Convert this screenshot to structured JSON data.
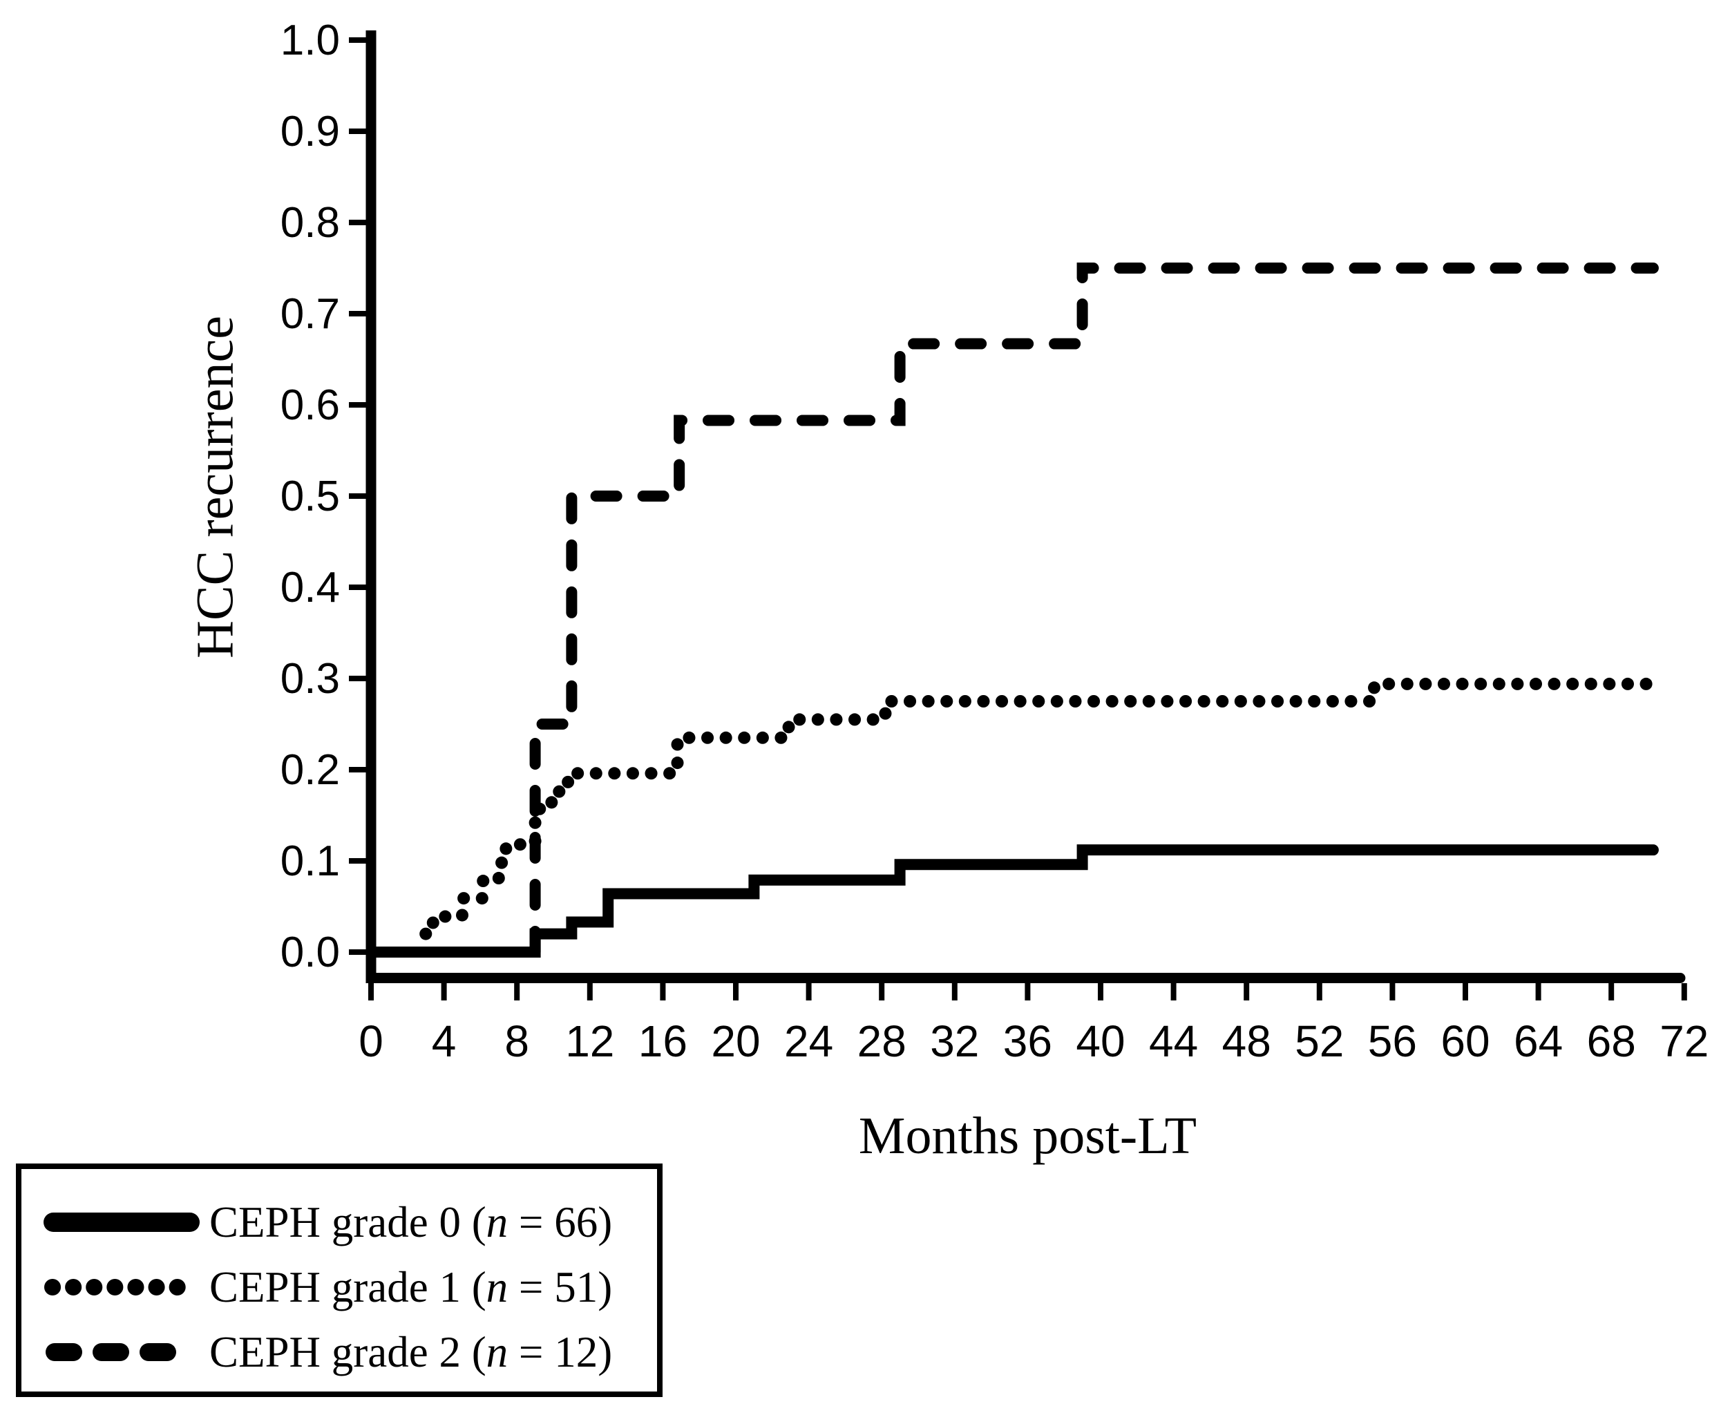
{
  "page": {
    "background": "#ffffff",
    "ink": "#000000"
  },
  "chart_data": {
    "type": "line",
    "subtype": "kaplan-meier-step",
    "title": "",
    "xlabel": "Months post-LT",
    "ylabel": "HCC recurrence",
    "x_ticks": [
      0,
      4,
      8,
      12,
      16,
      20,
      24,
      28,
      32,
      36,
      40,
      44,
      48,
      52,
      56,
      60,
      64,
      68,
      72
    ],
    "y_ticks": [
      1.0,
      0.9,
      0.8,
      0.7,
      0.6,
      0.5,
      0.4,
      0.3,
      0.2,
      0.1,
      0.0
    ],
    "xlim": [
      0,
      72
    ],
    "ylim": [
      0.0,
      1.0
    ],
    "grid": false,
    "legend_position": "bottom-left-outside",
    "series": [
      {
        "name": "CEPH grade 0",
        "n": 66,
        "line_style": "solid",
        "start": [
          0,
          0.0
        ],
        "steps": [
          [
            9,
            0.02
          ],
          [
            11,
            0.033
          ],
          [
            13,
            0.064
          ],
          [
            21,
            0.079
          ],
          [
            29,
            0.096
          ],
          [
            39,
            0.112
          ]
        ],
        "end_x": 70.3
      },
      {
        "name": "CEPH grade 1",
        "n": 51,
        "line_style": "dotted",
        "start": [
          3,
          0.02
        ],
        "steps": [
          [
            3.4,
            0.039
          ],
          [
            5,
            0.059
          ],
          [
            6.1,
            0.078
          ],
          [
            7,
            0.098
          ],
          [
            7.4,
            0.118
          ],
          [
            9,
            0.157
          ],
          [
            9.9,
            0.176
          ],
          [
            10.8,
            0.196
          ],
          [
            16.8,
            0.235
          ],
          [
            22.9,
            0.255
          ],
          [
            28.2,
            0.275
          ],
          [
            55,
            0.294
          ]
        ],
        "end_x": 70.3
      },
      {
        "name": "CEPH grade 2",
        "n": 12,
        "line_style": "dashed",
        "start": [
          9,
          0.0
        ],
        "steps": [
          [
            9,
            0.25
          ],
          [
            11,
            0.5
          ],
          [
            16.9,
            0.583
          ],
          [
            29,
            0.667
          ],
          [
            39,
            0.75
          ]
        ],
        "end_x": 70.3
      }
    ]
  },
  "legend": {
    "items": [
      {
        "swatch": "solid-line",
        "prefix": "CEPH grade 0 (",
        "n_var": "n",
        "suffix": " = 66)"
      },
      {
        "swatch": "dotted-line",
        "prefix": "CEPH grade 1 (",
        "n_var": "n",
        "suffix": " = 51)"
      },
      {
        "swatch": "dashed-line",
        "prefix": "CEPH grade 2 (",
        "n_var": "n",
        "suffix": " = 12)"
      }
    ]
  }
}
